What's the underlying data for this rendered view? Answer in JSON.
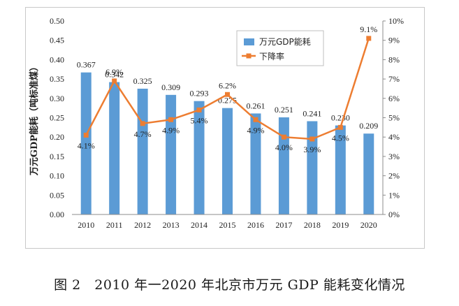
{
  "chart_data": {
    "type": "bar+line",
    "categories": [
      "2010",
      "2011",
      "2012",
      "2013",
      "2014",
      "2015",
      "2016",
      "2017",
      "2018",
      "2019",
      "2020"
    ],
    "series": [
      {
        "name": "万元GDP能耗",
        "type": "bar",
        "axis": "left",
        "values": [
          0.367,
          0.342,
          0.325,
          0.309,
          0.293,
          0.275,
          0.261,
          0.251,
          0.241,
          0.23,
          0.209
        ],
        "labels": [
          "0.367",
          "0.342",
          "0.325",
          "0.309",
          "0.293",
          "0.275",
          "0.261",
          "0.251",
          "0.241",
          "0.230",
          "0.209"
        ],
        "color": "#5b9bd5"
      },
      {
        "name": "下降率",
        "type": "line",
        "axis": "right",
        "values": [
          4.1,
          6.9,
          4.7,
          4.9,
          5.4,
          6.2,
          4.9,
          4.0,
          3.9,
          4.5,
          9.1
        ],
        "labels": [
          "4.1%",
          "6.9%",
          "4.7%",
          "4.9%",
          "5.4%",
          "6.2%",
          "4.9%",
          "4.0%",
          "3.9%",
          "4.5%",
          "9.1%"
        ],
        "color": "#ed7d31"
      }
    ],
    "ylabel": "万元GDP能耗（吨标准煤）",
    "ylim": [
      0,
      0.5
    ],
    "yticks": [
      "0.00",
      "0.05",
      "0.10",
      "0.15",
      "0.20",
      "0.25",
      "0.30",
      "0.35",
      "0.40",
      "0.45",
      "0.50"
    ],
    "y2lim": [
      0,
      10
    ],
    "y2ticks": [
      "0%",
      "1%",
      "2%",
      "3%",
      "4%",
      "5%",
      "6%",
      "7%",
      "8%",
      "9%",
      "10%"
    ],
    "legend_position": "top-right",
    "grid": false
  },
  "caption": "图 2　2010 年一2020 年北京市万元 GDP 能耗变化情况"
}
